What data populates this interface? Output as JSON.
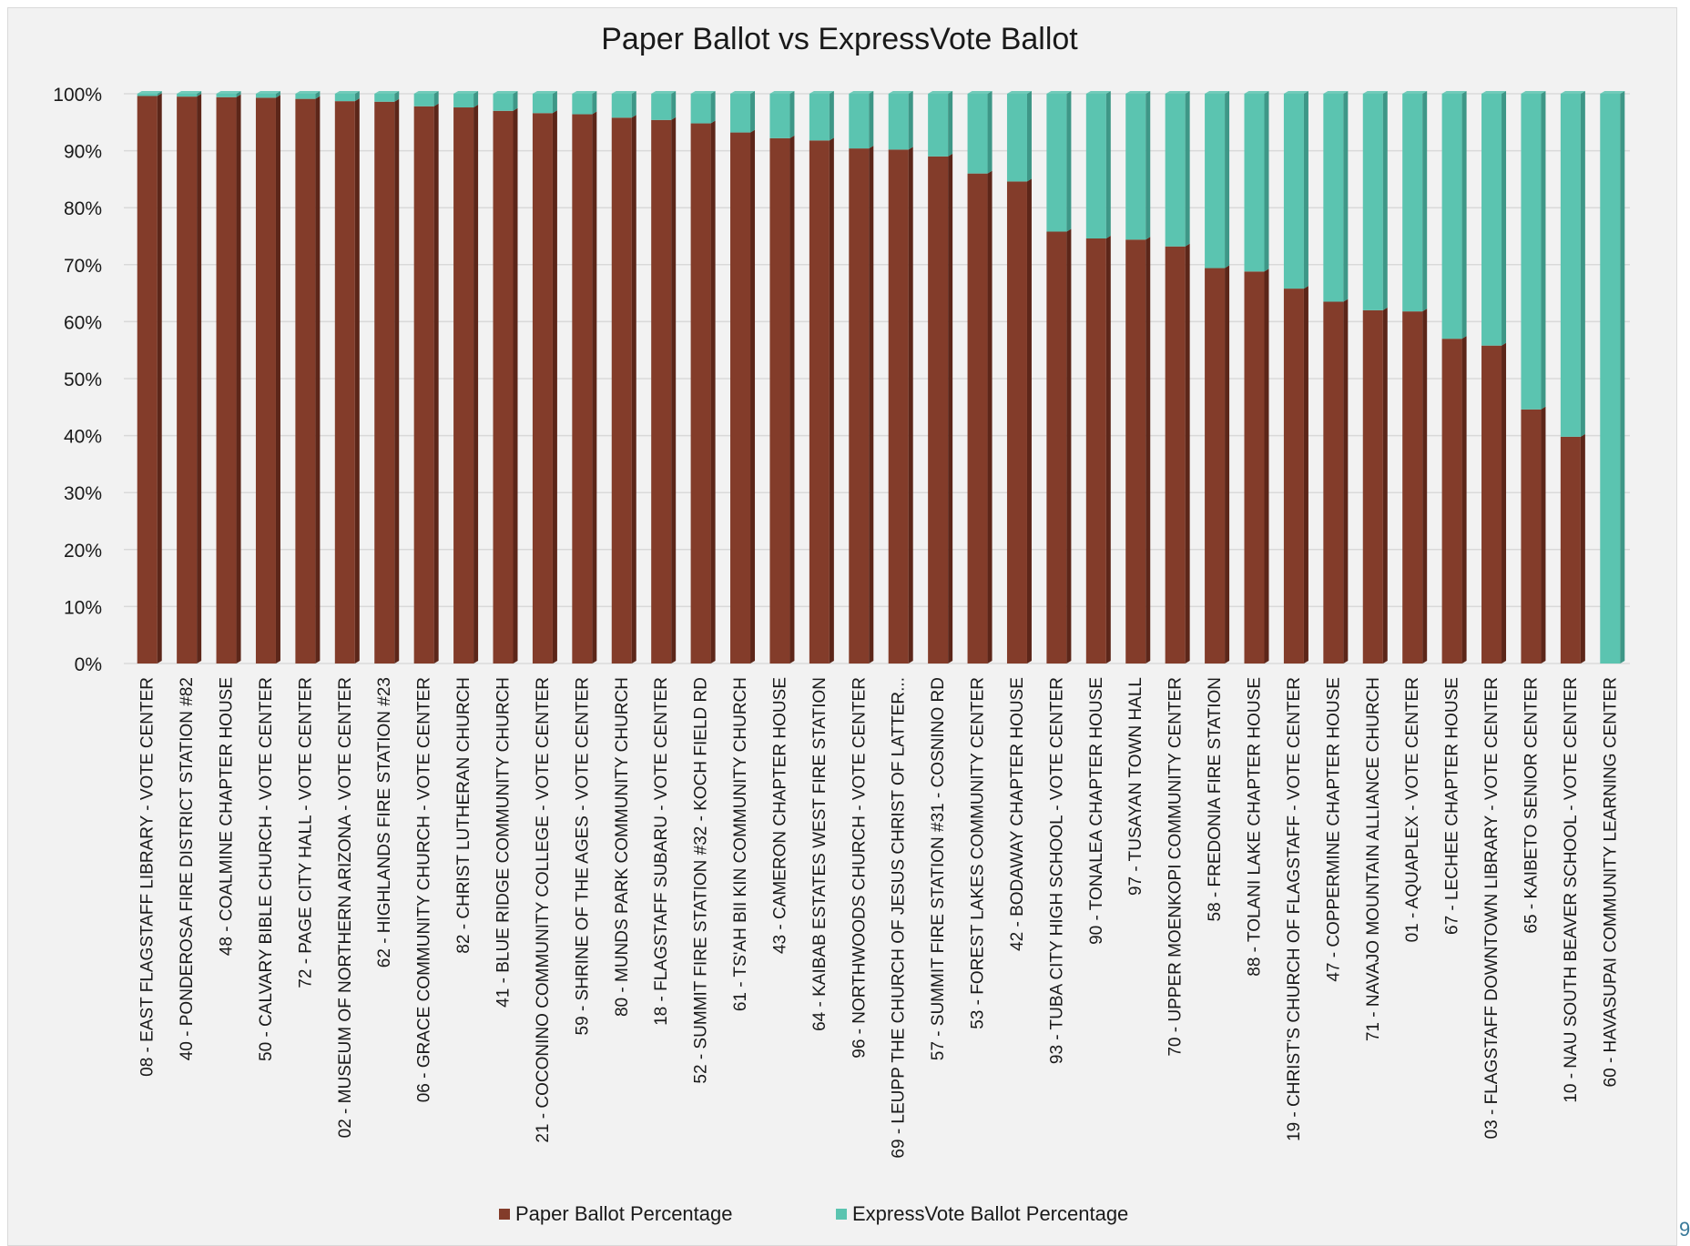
{
  "page_number": "9",
  "colors": {
    "paper": "#833C2A",
    "paper_dark": "#5C2619",
    "express": "#5BC4B0",
    "express_dark": "#3E9787",
    "grid": "#d9d9d9",
    "frame_bg": "#f2f2f2",
    "text": "#1a1a1a"
  },
  "chart_data": {
    "type": "bar",
    "stacked": true,
    "title": "Paper Ballot vs ExpressVote Ballot",
    "xlabel": "",
    "ylabel": "",
    "ylim": [
      0,
      100
    ],
    "y_ticks": [
      "0%",
      "10%",
      "20%",
      "30%",
      "40%",
      "50%",
      "60%",
      "70%",
      "80%",
      "90%",
      "100%"
    ],
    "grid": true,
    "legend_position": "bottom",
    "categories": [
      "08 - EAST FLAGSTAFF LIBRARY - VOTE CENTER",
      "40 - PONDEROSA FIRE DISTRICT STATION #82",
      "48 - COALMINE CHAPTER HOUSE",
      "50 - CALVARY BIBLE CHURCH - VOTE CENTER",
      "72 - PAGE CITY HALL - VOTE CENTER",
      "02 - MUSEUM OF NORTHERN ARIZONA - VOTE CENTER",
      "62 - HIGHLANDS FIRE STATION #23",
      "06 - GRACE COMMUNITY CHURCH - VOTE CENTER",
      "82 - CHRIST LUTHERAN CHURCH",
      "41 - BLUE RIDGE COMMUNITY CHURCH",
      "21 - COCONINO COMMUNITY COLLEGE - VOTE CENTER",
      "59 - SHRINE OF THE AGES - VOTE CENTER",
      "80 - MUNDS PARK COMMUNITY CHURCH",
      "18 - FLAGSTAFF SUBARU - VOTE CENTER",
      "52 - SUMMIT FIRE STATION #32 - KOCH FIELD RD",
      "61 - TS'AH BII KIN COMMUNITY CHURCH",
      "43 - CAMERON CHAPTER HOUSE",
      "64 - KAIBAB ESTATES WEST FIRE STATION",
      "96 - NORTHWOODS CHURCH - VOTE CENTER",
      "69 - LEUPP THE CHURCH OF JESUS CHRIST OF LATTER...",
      "57 - SUMMIT FIRE STATION #31 - COSNINO RD",
      "53 - FOREST LAKES COMMUNITY CENTER",
      "42 - BODAWAY CHAPTER HOUSE",
      "93 - TUBA CITY HIGH SCHOOL - VOTE CENTER",
      "90 - TONALEA CHAPTER HOUSE",
      "97 - TUSAYAN TOWN HALL",
      "70 - UPPER MOENKOPI COMMUNITY CENTER",
      "58 - FREDONIA FIRE STATION",
      "88 - TOLANI LAKE CHAPTER HOUSE",
      "19 - CHRIST'S CHURCH OF FLAGSTAFF - VOTE CENTER",
      "47 - COPPERMINE CHAPTER HOUSE",
      "71 - NAVAJO MOUNTAIN ALLIANCE CHURCH",
      "01 - AQUAPLEX - VOTE CENTER",
      "67 - LECHEE CHAPTER HOUSE",
      "03 - FLAGSTAFF DOWNTOWN LIBRARY - VOTE CENTER",
      "65 - KAIBETO SENIOR CENTER",
      "10 - NAU SOUTH BEAVER SCHOOL - VOTE CENTER",
      "60 - HAVASUPAI COMMUNITY LEARNING CENTER"
    ],
    "series": [
      {
        "name": "Paper Ballot Percentage",
        "values": [
          99.6,
          99.5,
          99.4,
          99.3,
          99.1,
          98.7,
          98.6,
          97.8,
          97.6,
          97.0,
          96.6,
          96.4,
          95.8,
          95.4,
          94.8,
          93.2,
          92.2,
          91.8,
          90.4,
          90.2,
          89.0,
          86.0,
          84.6,
          75.8,
          74.6,
          74.4,
          73.2,
          69.4,
          68.8,
          65.8,
          63.5,
          62.0,
          61.8,
          57.0,
          55.8,
          44.6,
          39.8,
          0
        ]
      },
      {
        "name": "ExpressVote Ballot Percentage",
        "values": [
          0.4,
          0.5,
          0.6,
          0.7,
          0.9,
          1.3,
          1.4,
          2.2,
          2.4,
          3.0,
          3.4,
          3.6,
          4.2,
          4.6,
          5.2,
          6.8,
          7.8,
          8.2,
          9.6,
          9.8,
          11.0,
          14.0,
          15.4,
          24.2,
          25.4,
          25.6,
          26.8,
          30.6,
          31.2,
          34.2,
          36.5,
          38.0,
          38.2,
          43.0,
          44.2,
          55.4,
          60.2,
          100
        ]
      }
    ]
  }
}
